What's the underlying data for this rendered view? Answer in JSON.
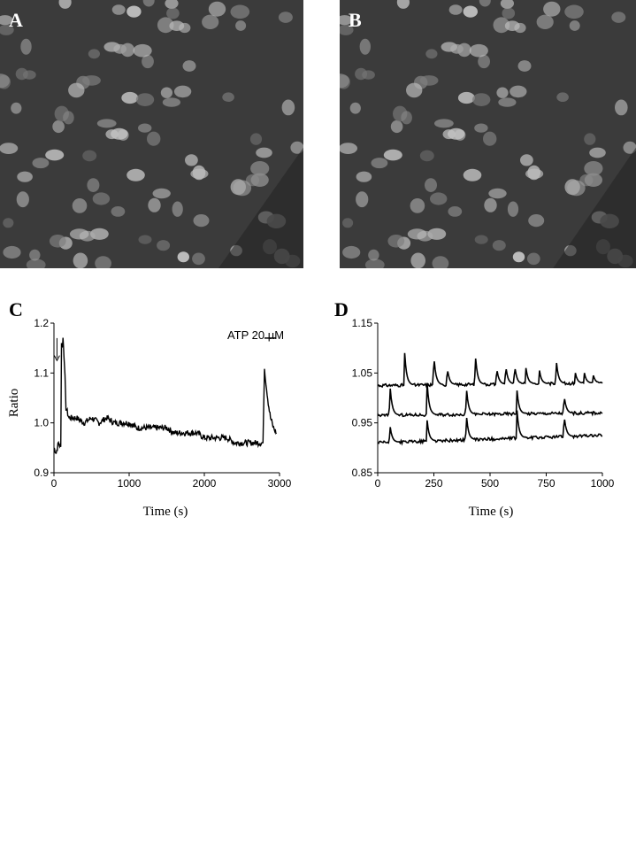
{
  "figure": {
    "panel_labels": [
      "A",
      "B",
      "C",
      "D"
    ]
  },
  "colors": {
    "image_background": "#3b3b3b",
    "cell_fill": "#9a9a9a",
    "trace": "#000000"
  },
  "chart_data": [
    {
      "panel": "C",
      "type": "line",
      "title": "",
      "xlabel": "Time (s)",
      "ylabel": "Ratio",
      "xlim": [
        0,
        3000
      ],
      "ylim": [
        0.9,
        1.2
      ],
      "x_ticks": [
        "0",
        "1000",
        "2000",
        "3000"
      ],
      "y_ticks": [
        "0.9",
        "1.0",
        "1.1",
        "1.2"
      ],
      "annotation": "ATP 20 µM",
      "annotation_bar": [
        2800,
        2950
      ],
      "arrow_at_x": 40,
      "series": [
        {
          "x": [
            0,
            30,
            60,
            90,
            100,
            110,
            120,
            140,
            160,
            200,
            300,
            400,
            500,
            600,
            700,
            800,
            900,
            1000,
            1100,
            1200,
            1300,
            1400,
            1500,
            1600,
            1700,
            1800,
            1900,
            2000,
            2100,
            2200,
            2300,
            2400,
            2500,
            2600,
            2700,
            2780,
            2800,
            2820,
            2850,
            2880,
            2920,
            2960
          ],
          "values": [
            0.95,
            0.94,
            0.96,
            0.95,
            1.16,
            1.15,
            1.17,
            1.12,
            1.03,
            1.01,
            1.01,
            1.0,
            1.01,
            1.0,
            1.01,
            1.0,
            1.0,
            1.0,
            0.99,
            0.99,
            0.99,
            0.99,
            0.99,
            0.98,
            0.98,
            0.98,
            0.98,
            0.97,
            0.97,
            0.97,
            0.97,
            0.96,
            0.96,
            0.96,
            0.96,
            0.96,
            1.11,
            1.08,
            1.04,
            1.01,
            0.99,
            0.98
          ]
        }
      ]
    },
    {
      "panel": "D",
      "type": "line",
      "title": "",
      "xlabel": "Time (s)",
      "ylabel": "",
      "xlim": [
        0,
        1000
      ],
      "ylim": [
        0.85,
        1.15
      ],
      "x_ticks": [
        "0",
        "250",
        "500",
        "750",
        "1000"
      ],
      "y_ticks": [
        "0.85",
        "0.95",
        "1.05",
        "1.15"
      ],
      "series": [
        {
          "baseline": [
            1.025,
            1.03
          ],
          "peaks": [
            [
              120,
              1.09
            ],
            [
              250,
              1.085
            ],
            [
              310,
              1.06
            ],
            [
              435,
              1.085
            ],
            [
              530,
              1.06
            ],
            [
              570,
              1.065
            ],
            [
              610,
              1.065
            ],
            [
              660,
              1.06
            ],
            [
              720,
              1.055
            ],
            [
              795,
              1.075
            ],
            [
              880,
              1.05
            ],
            [
              920,
              1.05
            ],
            [
              960,
              1.045
            ]
          ]
        },
        {
          "baseline": [
            0.965,
            0.97
          ],
          "peaks": [
            [
              55,
              1.025
            ],
            [
              220,
              1.03
            ],
            [
              395,
              1.02
            ],
            [
              620,
              1.015
            ],
            [
              830,
              1.005
            ]
          ]
        },
        {
          "baseline": [
            0.91,
            0.925
          ],
          "peaks": [
            [
              55,
              0.945
            ],
            [
              220,
              0.955
            ],
            [
              395,
              0.965
            ],
            [
              620,
              0.975
            ],
            [
              830,
              0.965
            ]
          ]
        }
      ]
    }
  ]
}
